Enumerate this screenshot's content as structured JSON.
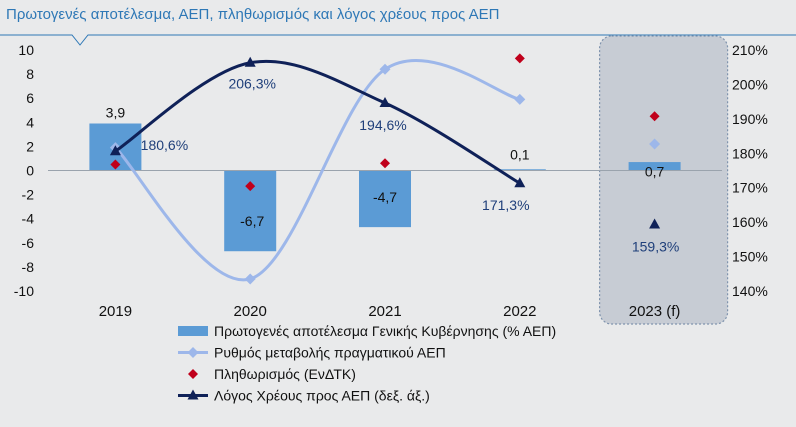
{
  "title": "Πρωτογενές αποτέλεσμα, ΑΕΠ, πληθωρισμός και λόγος χρέους προς ΑΕΠ",
  "colors": {
    "bar": "#5b9bd5",
    "gdp_line": "#9db7ea",
    "inflation": "#c0001b",
    "debt": "#0f2158",
    "forecast_box": "#c7ccd4",
    "forecast_border": "#7f93ad"
  },
  "chart_data": {
    "type": "bar",
    "categories": [
      "2019",
      "2020",
      "2021",
      "2022",
      "2023 (f)"
    ],
    "y_left": {
      "ylim": [
        -10,
        10
      ],
      "ticks": [
        10,
        8,
        6,
        4,
        2,
        0,
        -2,
        -4,
        -6,
        -8,
        -10
      ]
    },
    "y_right": {
      "ylim": [
        1.4,
        2.1
      ],
      "ticks": [
        2.1,
        2.0,
        1.9,
        1.8,
        1.7,
        1.6,
        1.5,
        1.4
      ],
      "tick_labels": [
        "210%",
        "200%",
        "190%",
        "180%",
        "170%",
        "160%",
        "150%",
        "140%"
      ]
    },
    "grid": false,
    "legend_position": "bottom",
    "forecast_category": "2023 (f)",
    "series": [
      {
        "name": "Πρωτογενές αποτέλεσμα Γενικής Κυβέρνησης (% ΑΕΠ)",
        "type": "bar",
        "axis": "left",
        "values": [
          3.9,
          -6.7,
          -4.7,
          0.1,
          0.7
        ],
        "labels": [
          "3,9",
          "-6,7",
          "-4,7",
          "0,1",
          "0,7"
        ]
      },
      {
        "name": "Ρυθμός μεταβολής πραγματικού ΑΕΠ",
        "type": "line",
        "axis": "left",
        "smooth": true,
        "values": [
          1.9,
          -9.0,
          8.4,
          5.9,
          2.2
        ]
      },
      {
        "name": "Πληθωρισμός (ΕνΔΤΚ)",
        "type": "scatter",
        "axis": "left",
        "values": [
          0.5,
          -1.3,
          0.6,
          9.3,
          4.5
        ]
      },
      {
        "name": "Λόγος Χρέους προς ΑΕΠ (δεξ. άξ.)",
        "type": "line",
        "axis": "right",
        "smooth": true,
        "values": [
          1.806,
          2.063,
          1.946,
          1.713,
          1.593
        ],
        "labels": [
          "180,6%",
          "206,3%",
          "194,6%",
          "171,3%",
          "159,3%"
        ]
      }
    ]
  }
}
